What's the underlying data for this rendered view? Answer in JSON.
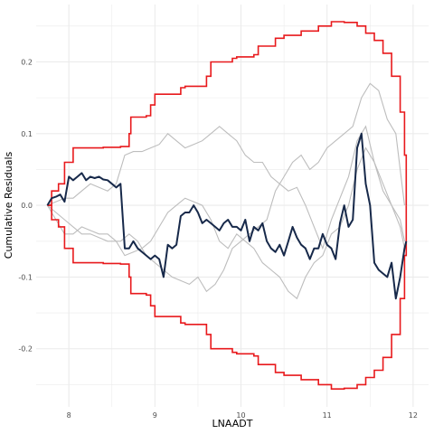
{
  "chart_data": {
    "type": "line",
    "title": "",
    "xlabel": "LNAADT",
    "ylabel": "Cumulative Residuals",
    "xlim": [
      7.62,
      12.18
    ],
    "ylim": [
      -0.281,
      0.28
    ],
    "x_ticks": [
      8,
      9,
      10,
      11,
      12
    ],
    "x_tick_labels": [
      "8",
      "9",
      "10",
      "11",
      "12"
    ],
    "y_ticks": [
      -0.2,
      -0.1,
      0.0,
      0.1,
      0.2
    ],
    "y_tick_labels": [
      "-0.2",
      "-0.1",
      "0.0",
      "0.1",
      "0.2"
    ],
    "grid": true,
    "legend": "none",
    "colors": {
      "bounds": "#e8191c",
      "observed": "#17294a",
      "simulated": "#bdbdbd",
      "grid": "#ebebeb"
    },
    "upper_bound": {
      "x": [
        7.75,
        7.8,
        7.88,
        7.95,
        8.05,
        8.1,
        8.2,
        8.4,
        8.6,
        8.7,
        8.72,
        8.9,
        8.95,
        9.0,
        9.3,
        9.35,
        9.6,
        9.65,
        9.9,
        9.95,
        10.15,
        10.2,
        10.4,
        10.5,
        10.7,
        10.9,
        11.05,
        11.2,
        11.35,
        11.45,
        11.55,
        11.65,
        11.75,
        11.85,
        11.9,
        11.92
      ],
      "y": [
        0.0,
        0.02,
        0.03,
        0.06,
        0.08,
        0.08,
        0.08,
        0.081,
        0.082,
        0.1,
        0.123,
        0.125,
        0.14,
        0.155,
        0.164,
        0.166,
        0.18,
        0.2,
        0.205,
        0.207,
        0.21,
        0.222,
        0.233,
        0.237,
        0.243,
        0.25,
        0.256,
        0.255,
        0.25,
        0.24,
        0.23,
        0.212,
        0.18,
        0.13,
        0.07,
        0.0
      ]
    },
    "lower_bound": {
      "x": [
        7.75,
        7.8,
        7.88,
        7.95,
        8.05,
        8.1,
        8.2,
        8.4,
        8.6,
        8.7,
        8.72,
        8.9,
        8.95,
        9.0,
        9.3,
        9.35,
        9.6,
        9.65,
        9.9,
        9.95,
        10.15,
        10.2,
        10.4,
        10.5,
        10.7,
        10.9,
        11.05,
        11.2,
        11.35,
        11.45,
        11.55,
        11.65,
        11.75,
        11.85,
        11.9,
        11.92
      ],
      "y": [
        0.0,
        -0.02,
        -0.03,
        -0.06,
        -0.08,
        -0.08,
        -0.08,
        -0.081,
        -0.082,
        -0.1,
        -0.123,
        -0.125,
        -0.14,
        -0.155,
        -0.164,
        -0.166,
        -0.18,
        -0.2,
        -0.205,
        -0.207,
        -0.21,
        -0.222,
        -0.233,
        -0.237,
        -0.243,
        -0.25,
        -0.256,
        -0.255,
        -0.25,
        -0.24,
        -0.23,
        -0.212,
        -0.18,
        -0.13,
        -0.07,
        0.0
      ]
    },
    "observed": {
      "x": [
        7.75,
        7.8,
        7.85,
        7.9,
        7.95,
        8.0,
        8.05,
        8.1,
        8.15,
        8.2,
        8.25,
        8.3,
        8.35,
        8.4,
        8.45,
        8.5,
        8.55,
        8.6,
        8.65,
        8.7,
        8.75,
        8.8,
        8.9,
        8.95,
        9.0,
        9.05,
        9.1,
        9.15,
        9.2,
        9.25,
        9.3,
        9.35,
        9.4,
        9.45,
        9.5,
        9.55,
        9.6,
        9.65,
        9.7,
        9.75,
        9.8,
        9.85,
        9.9,
        9.95,
        10.0,
        10.05,
        10.1,
        10.15,
        10.2,
        10.25,
        10.3,
        10.35,
        10.4,
        10.45,
        10.5,
        10.55,
        10.6,
        10.65,
        10.7,
        10.75,
        10.8,
        10.85,
        10.9,
        10.95,
        11.0,
        11.05,
        11.1,
        11.15,
        11.2,
        11.25,
        11.3,
        11.35,
        11.4,
        11.45,
        11.5,
        11.55,
        11.6,
        11.65,
        11.7,
        11.75,
        11.8,
        11.85,
        11.9,
        11.92
      ],
      "y": [
        0.0,
        0.01,
        0.012,
        0.015,
        0.005,
        0.04,
        0.035,
        0.04,
        0.045,
        0.035,
        0.04,
        0.038,
        0.04,
        0.036,
        0.035,
        0.03,
        0.025,
        0.03,
        -0.06,
        -0.06,
        -0.05,
        -0.06,
        -0.07,
        -0.075,
        -0.07,
        -0.075,
        -0.1,
        -0.055,
        -0.06,
        -0.055,
        -0.015,
        -0.01,
        -0.01,
        0.0,
        -0.01,
        -0.025,
        -0.02,
        -0.025,
        -0.03,
        -0.035,
        -0.025,
        -0.02,
        -0.03,
        -0.03,
        -0.035,
        -0.02,
        -0.05,
        -0.03,
        -0.035,
        -0.025,
        -0.05,
        -0.06,
        -0.065,
        -0.055,
        -0.07,
        -0.05,
        -0.03,
        -0.045,
        -0.055,
        -0.06,
        -0.075,
        -0.06,
        -0.06,
        -0.04,
        -0.055,
        -0.06,
        -0.075,
        -0.025,
        0.0,
        -0.03,
        -0.02,
        0.08,
        0.1,
        0.03,
        0.0,
        -0.08,
        -0.09,
        -0.095,
        -0.1,
        -0.08,
        -0.13,
        -0.1,
        -0.06,
        -0.05
      ]
    },
    "simulated": [
      {
        "x": [
          7.75,
          7.85,
          7.95,
          8.05,
          8.15,
          8.25,
          8.35,
          8.45,
          8.55,
          8.6,
          8.7,
          8.8,
          8.9,
          9.0,
          9.1,
          9.2,
          9.3,
          9.4,
          9.5,
          9.6,
          9.7,
          9.8,
          9.9,
          10.0,
          10.1,
          10.2,
          10.3,
          10.4,
          10.5,
          10.6,
          10.7,
          10.8,
          10.9,
          11.0,
          11.1,
          11.2,
          11.3,
          11.4,
          11.5,
          11.6,
          11.7,
          11.8,
          11.9
        ],
        "y": [
          0.0,
          -0.01,
          -0.02,
          -0.03,
          -0.04,
          -0.04,
          -0.045,
          -0.05,
          -0.05,
          -0.05,
          -0.04,
          -0.05,
          -0.07,
          -0.08,
          -0.09,
          -0.1,
          -0.105,
          -0.11,
          -0.1,
          -0.12,
          -0.11,
          -0.09,
          -0.06,
          -0.05,
          -0.04,
          -0.03,
          -0.02,
          0.02,
          0.04,
          0.06,
          0.07,
          0.05,
          0.06,
          0.08,
          0.09,
          0.1,
          0.11,
          0.15,
          0.17,
          0.16,
          0.12,
          0.1,
          0.0
        ]
      },
      {
        "x": [
          7.75,
          7.85,
          7.95,
          8.05,
          8.15,
          8.25,
          8.35,
          8.45,
          8.55,
          8.65,
          8.75,
          8.85,
          8.95,
          9.05,
          9.15,
          9.25,
          9.35,
          9.45,
          9.55,
          9.65,
          9.75,
          9.85,
          9.95,
          10.05,
          10.15,
          10.25,
          10.35,
          10.45,
          10.55,
          10.65,
          10.75,
          10.85,
          10.95,
          11.05,
          11.15,
          11.25,
          11.35,
          11.45,
          11.55,
          11.65,
          11.75,
          11.85,
          11.9
        ],
        "y": [
          0.0,
          0.005,
          0.01,
          0.01,
          0.02,
          0.03,
          0.025,
          0.02,
          0.03,
          0.07,
          0.075,
          0.075,
          0.08,
          0.085,
          0.1,
          0.09,
          0.08,
          0.085,
          0.09,
          0.1,
          0.11,
          0.1,
          0.09,
          0.07,
          0.06,
          0.06,
          0.04,
          0.03,
          0.02,
          0.025,
          0.0,
          -0.03,
          -0.06,
          -0.02,
          0.01,
          0.04,
          0.09,
          0.11,
          0.06,
          0.02,
          0.0,
          -0.02,
          -0.05
        ]
      },
      {
        "x": [
          7.75,
          7.85,
          7.95,
          8.05,
          8.15,
          8.25,
          8.35,
          8.45,
          8.55,
          8.65,
          8.75,
          8.85,
          8.95,
          9.05,
          9.15,
          9.25,
          9.35,
          9.45,
          9.55,
          9.65,
          9.75,
          9.85,
          9.95,
          10.05,
          10.15,
          10.25,
          10.35,
          10.45,
          10.55,
          10.65,
          10.75,
          10.85,
          10.95,
          11.05,
          11.15,
          11.25,
          11.35,
          11.45,
          11.55,
          11.65,
          11.75,
          11.85,
          11.9
        ],
        "y": [
          0.0,
          -0.02,
          -0.04,
          -0.04,
          -0.03,
          -0.035,
          -0.04,
          -0.04,
          -0.05,
          -0.07,
          -0.065,
          -0.06,
          -0.05,
          -0.03,
          -0.01,
          0.0,
          0.01,
          0.005,
          0.0,
          -0.02,
          -0.05,
          -0.06,
          -0.04,
          -0.05,
          -0.06,
          -0.08,
          -0.09,
          -0.1,
          -0.12,
          -0.13,
          -0.1,
          -0.08,
          -0.07,
          -0.04,
          -0.03,
          0.0,
          0.05,
          0.08,
          0.06,
          0.03,
          0.0,
          -0.03,
          -0.06
        ]
      }
    ]
  }
}
